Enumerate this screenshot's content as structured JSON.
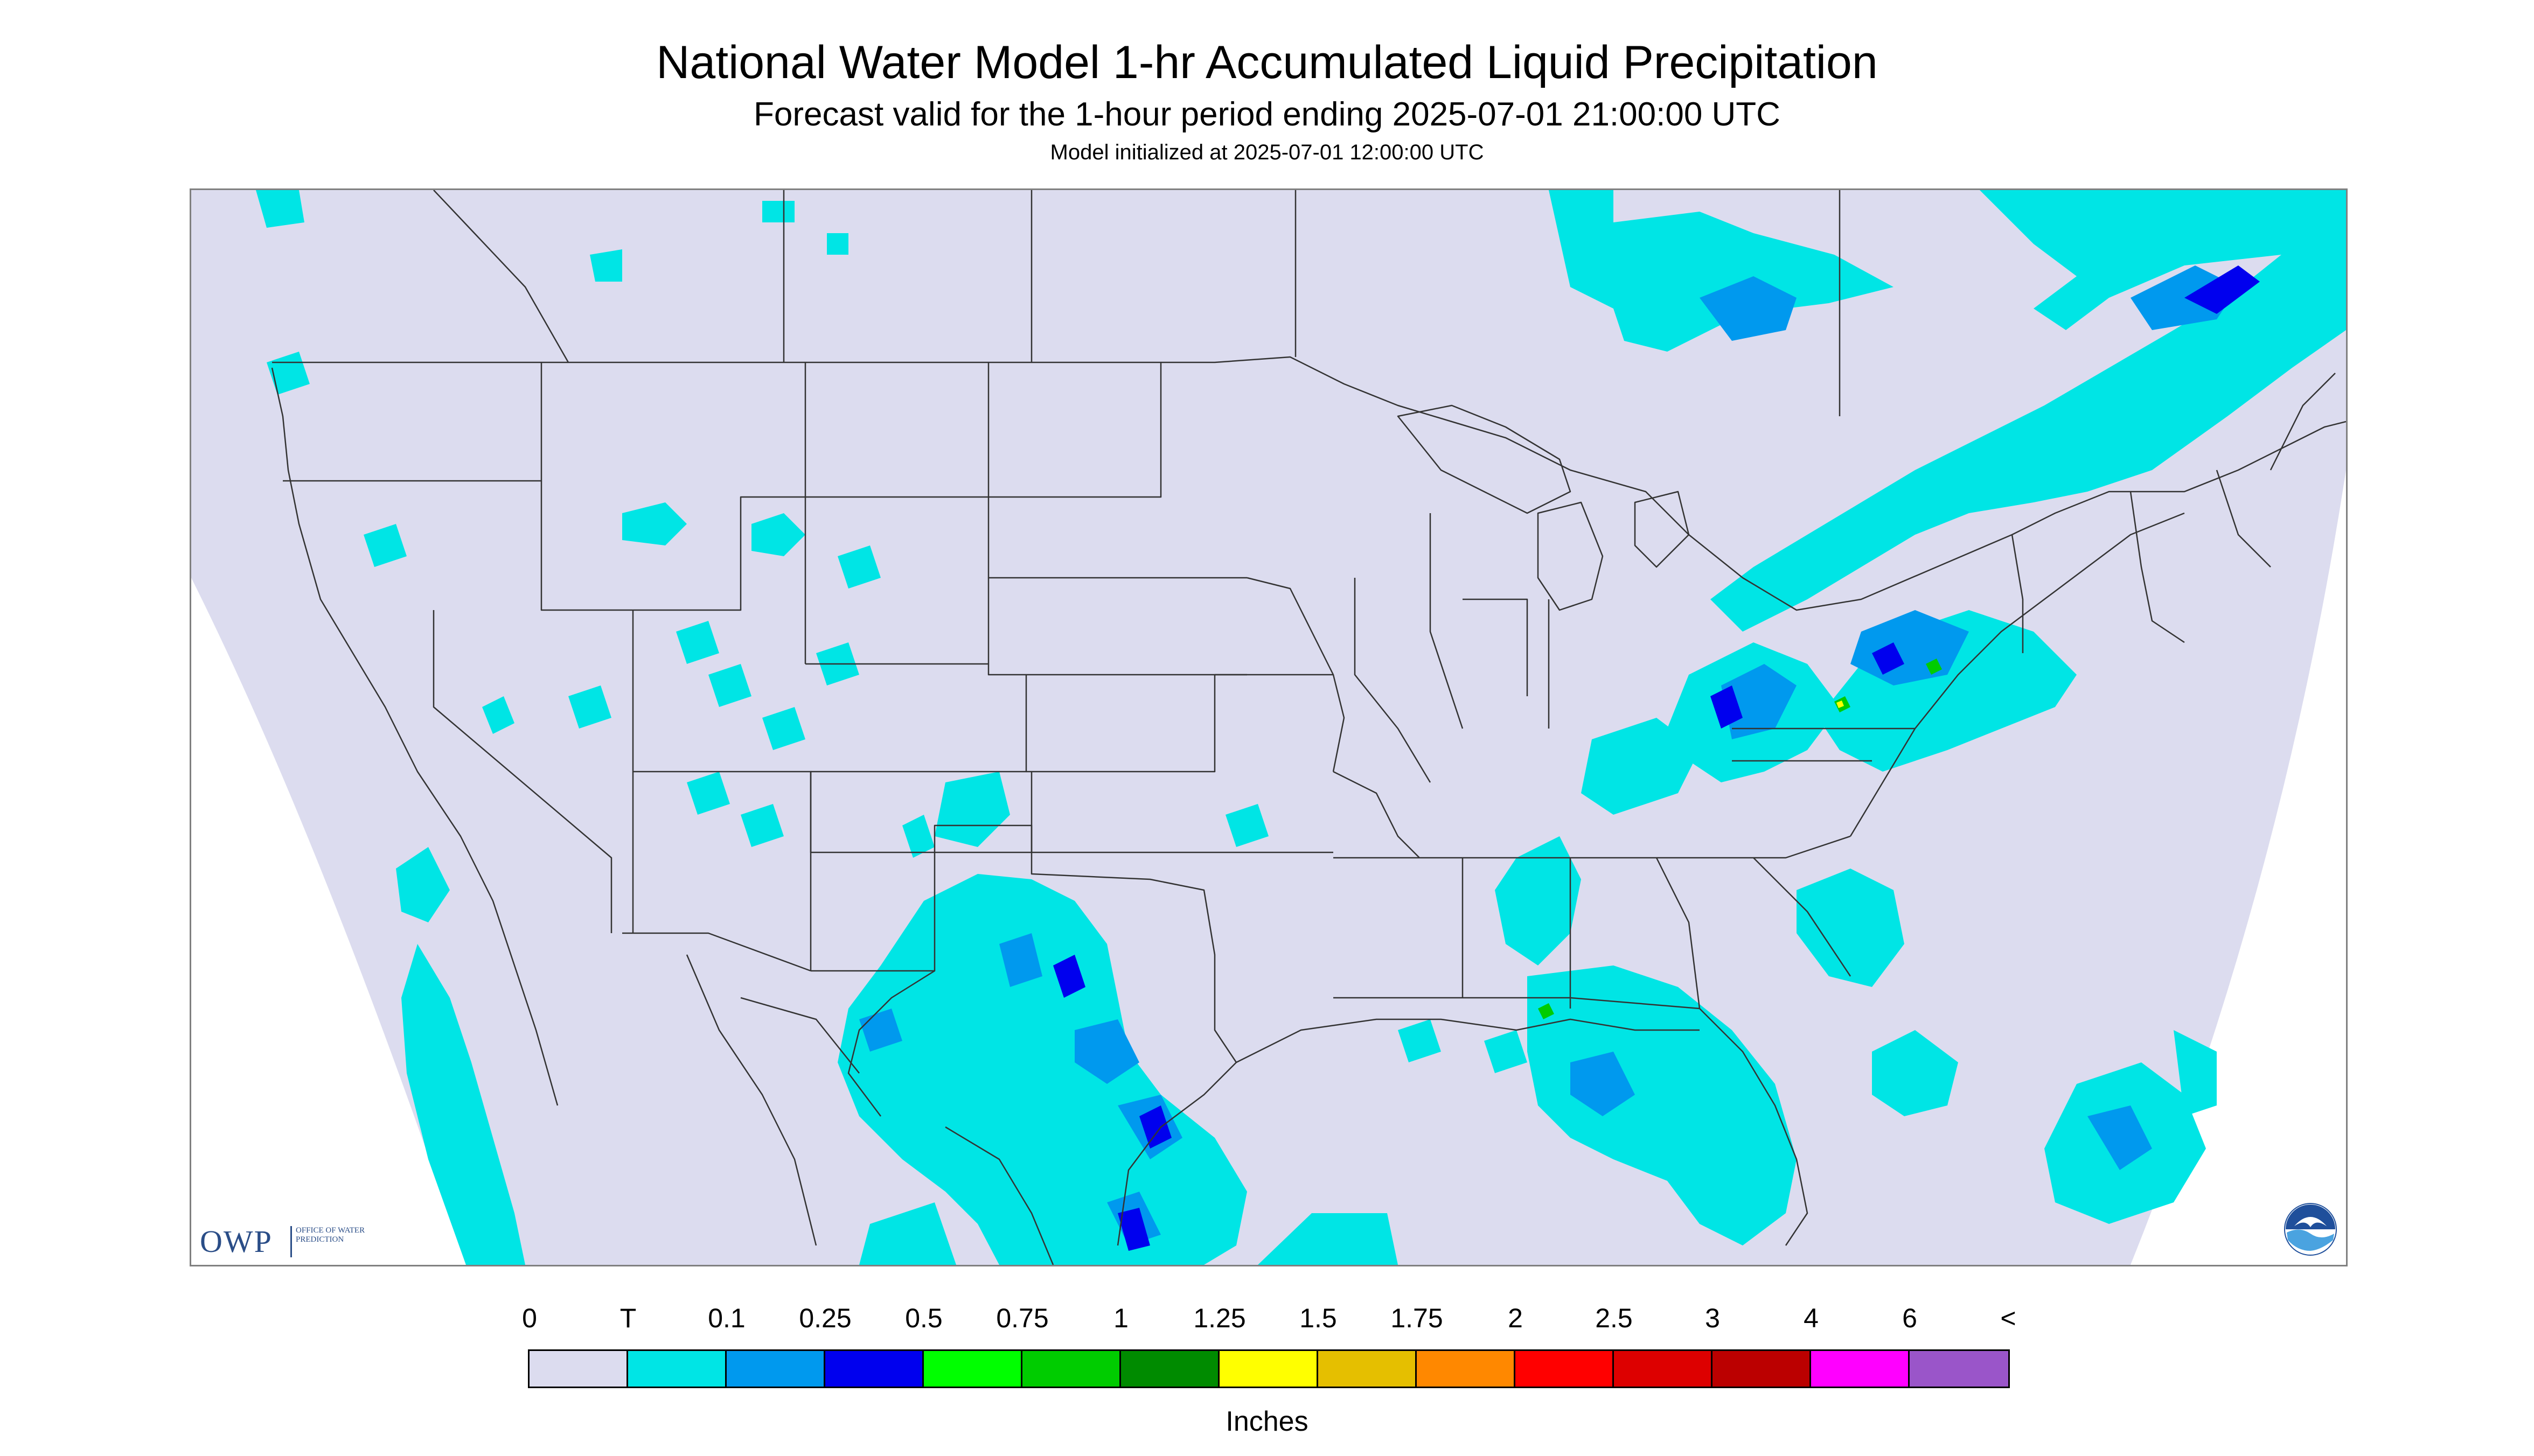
{
  "title": "National Water Model 1-hr Accumulated Liquid Precipitation",
  "subtitle": "Forecast valid for the 1-hour period ending 2025-07-01 21:00:00 UTC",
  "init_text": "Model initialized at 2025-07-01 12:00:00 UTC",
  "logo_owp": {
    "letters": "OWP",
    "text": "OFFICE OF WATER PREDICTION"
  },
  "logo_noaa": {
    "text": "NOAA"
  },
  "legend": {
    "units": "Inches",
    "labels": [
      "0",
      "T",
      "0.1",
      "0.25",
      "0.5",
      "0.75",
      "1",
      "1.25",
      "1.5",
      "1.75",
      "2",
      "2.5",
      "3",
      "4",
      "6",
      "<"
    ],
    "colors": [
      "#dcdcef",
      "#00e5e5",
      "#0099ee",
      "#0000ee",
      "#00ff00",
      "#00cc00",
      "#008b00",
      "#ffff00",
      "#e5bf00",
      "#ff8800",
      "#ff0000",
      "#dd0000",
      "#bb0000",
      "#ff00ff",
      "#9a55c9"
    ]
  },
  "map": {
    "background_color": "#dcdcef",
    "outside_color": "#ffffff",
    "border_color": "#333333",
    "precip_colors": {
      "trace": "#00e5e5",
      "light": "#0099ee",
      "moderate": "#0000ee",
      "heavy": "#00cc00",
      "very_heavy": "#ffff00"
    }
  }
}
